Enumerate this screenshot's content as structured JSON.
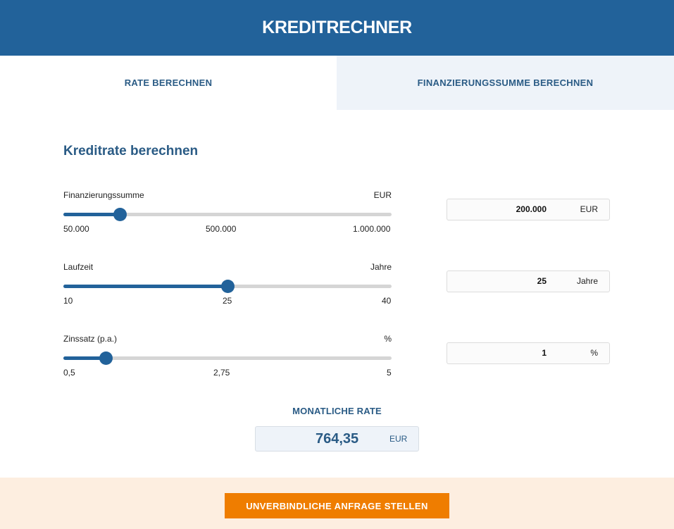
{
  "header": {
    "title": "KREDITRECHNER"
  },
  "tabs": [
    {
      "label": "RATE BERECHNEN",
      "active": true
    },
    {
      "label": "FINANZIERUNGSSUMME BERECHNEN",
      "active": false
    }
  ],
  "section": {
    "title": "Kreditrate berechnen"
  },
  "sliders": [
    {
      "label": "Finanzierungssumme",
      "unit": "EUR",
      "min_label": "50.000",
      "mid_label": "500.000",
      "max_label": "1.000.000",
      "fill_fraction": 0.173,
      "input_value": "200.000",
      "input_unit": "EUR"
    },
    {
      "label": "Laufzeit",
      "unit": "Jahre",
      "min_label": "10",
      "mid_label": "25",
      "max_label": "40",
      "fill_fraction": 0.5,
      "input_value": "25",
      "input_unit": "Jahre"
    },
    {
      "label": "Zinssatz (p.a.)",
      "unit": "%",
      "min_label": "0,5",
      "mid_label": "2,75",
      "max_label": "5",
      "fill_fraction": 0.13,
      "input_value": "1",
      "input_unit": "%"
    }
  ],
  "result": {
    "label": "MONATLICHE RATE",
    "value": "764,35",
    "unit": "EUR"
  },
  "cta": {
    "label": "UNVERBINDLICHE ANFRAGE STELLEN"
  },
  "colors": {
    "primary": "#22629a",
    "accent": "#ef7d00",
    "tab_inactive_bg": "#eef3f9",
    "footer_bg": "#fdeee0"
  }
}
